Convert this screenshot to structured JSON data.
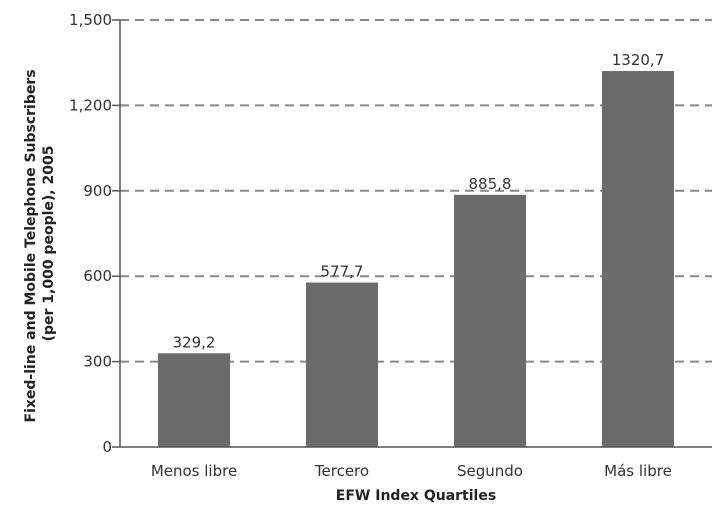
{
  "chart_data": {
    "type": "bar",
    "categories": [
      "Menos libre",
      "Tercero",
      "Segundo",
      "Más libre"
    ],
    "values": [
      329.2,
      577.7,
      885.8,
      1320.7
    ],
    "data_labels": [
      "329,2",
      "577,7",
      "885,8",
      "1320,7"
    ],
    "title": "",
    "xlabel": "EFW Index Quartiles",
    "ylabel_lines": [
      "Fixed-line and Mobile Telephone Subscribers",
      "(per 1,000 people), 2005"
    ],
    "ylim": [
      0,
      1500
    ],
    "yticks": [
      0,
      300,
      600,
      900,
      1200,
      1500
    ],
    "ytick_labels": [
      "0",
      "300",
      "600",
      "900",
      "1,200",
      "1,500"
    ],
    "grid": "horizontal-dashed",
    "bar_color": "#6b6b6b",
    "grid_color": "#888888",
    "axis_color": "#555555"
  }
}
